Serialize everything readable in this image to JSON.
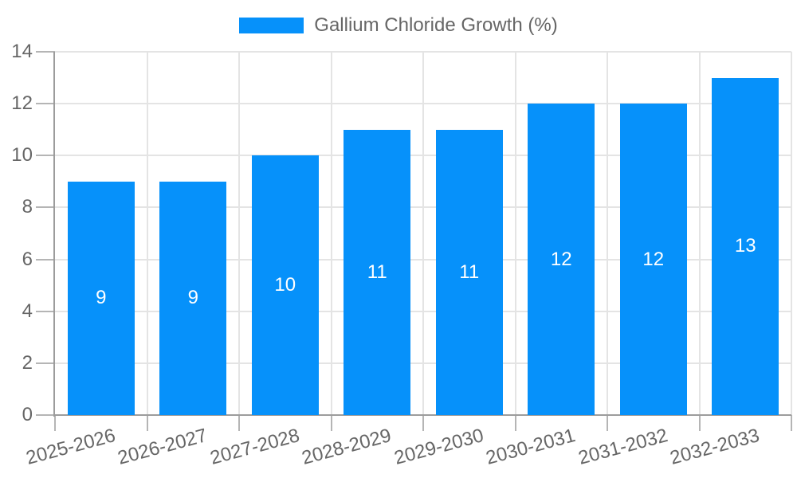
{
  "legend": {
    "label": "Gallium Chloride Growth (%)"
  },
  "chart_data": {
    "type": "bar",
    "title": "Gallium Chloride Growth (%)",
    "categories": [
      "2025-2026",
      "2026-2027",
      "2027-2028",
      "2028-2029",
      "2029-2030",
      "2030-2031",
      "2031-2032",
      "2032-2033"
    ],
    "values": [
      9,
      9,
      10,
      11,
      11,
      12,
      12,
      13
    ],
    "value_labels": [
      "9",
      "9",
      "10",
      "11",
      "11",
      "12",
      "12",
      "13"
    ],
    "xlabel": "",
    "ylabel": "",
    "ylim": [
      0,
      14
    ],
    "yticks": [
      0,
      2,
      4,
      6,
      8,
      10,
      12,
      14
    ],
    "grid": true,
    "legend_position": "top",
    "colors": {
      "bar": "#0691fa",
      "value_label": "#ffffff",
      "tick_text": "#666666",
      "legend_text": "#666666",
      "gridline": "#e4e4e4",
      "axis_line": "#9c9c9c",
      "tick_mark": "#b5b5b5",
      "background": "#ffffff"
    }
  }
}
